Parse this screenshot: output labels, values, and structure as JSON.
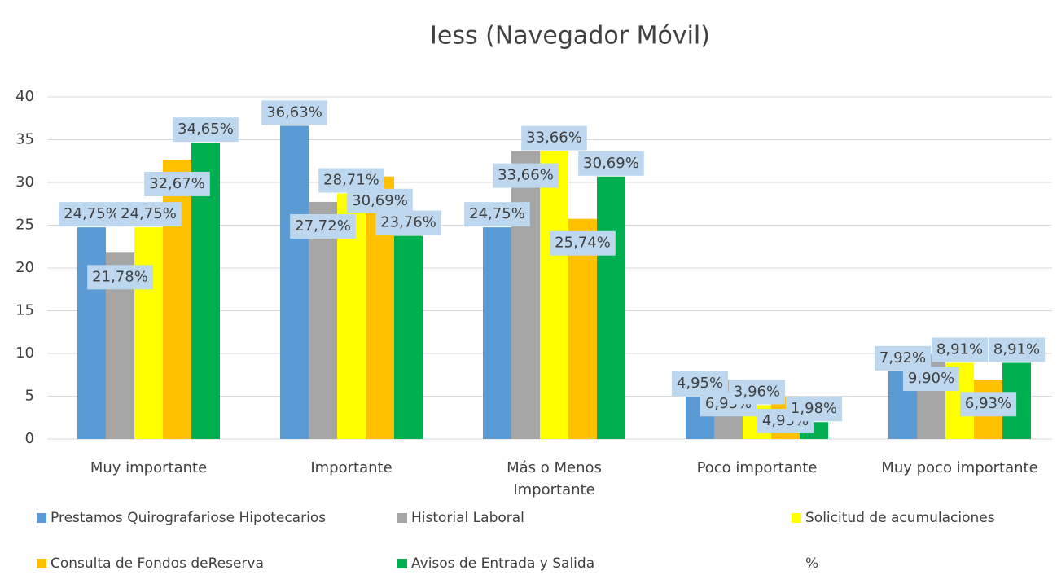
{
  "chart_data": {
    "type": "bar",
    "title": "Iess (Navegador Móvil)",
    "categories": [
      "Muy importante",
      "Importante",
      "Más o Menos\nImportante",
      "Poco importante",
      "Muy poco importante"
    ],
    "series": [
      {
        "name": "Prestamos Quirografariose Hipotecarios",
        "color": "#5b9bd5",
        "values": [
          24.75,
          36.63,
          24.75,
          4.95,
          7.92
        ],
        "value_labels": [
          "24,75%",
          "36,63%",
          "24,75%",
          "4,95%",
          "7,92%"
        ]
      },
      {
        "name": "Historial Laboral",
        "color": "#a5a5a5",
        "values": [
          21.78,
          27.72,
          33.66,
          6.93,
          9.9
        ],
        "value_labels": [
          "21,78%",
          "27,72%",
          "33,66%",
          "6,93%",
          "9,90%"
        ]
      },
      {
        "name": "Solicitud de acumulaciones",
        "color": "#ffff00",
        "values": [
          24.75,
          28.71,
          33.66,
          3.96,
          8.91
        ],
        "value_labels": [
          "24,75%",
          "28,71%",
          "33,66%",
          "3,96%",
          "8,91%"
        ]
      },
      {
        "name": "Consulta de Fondos deReserva",
        "color": "#ffc000",
        "values": [
          32.67,
          30.69,
          25.74,
          4.95,
          6.93
        ],
        "value_labels": [
          "32,67%",
          "30,69%",
          "25,74%",
          "4,95%",
          "6,93%"
        ]
      },
      {
        "name": "Avisos de Entrada y Salida",
        "color": "#00b050",
        "values": [
          34.65,
          23.76,
          30.69,
          1.98,
          8.91
        ],
        "value_labels": [
          "34,65%",
          "23,76%",
          "30,69%",
          "1,98%",
          "8,91%"
        ]
      }
    ],
    "extra_legend": [
      "%"
    ],
    "ylim": [
      0,
      40
    ],
    "yticks": [
      0,
      5,
      10,
      15,
      20,
      25,
      30,
      35,
      40
    ],
    "grid": true,
    "label_color": "#bdd7ee"
  }
}
